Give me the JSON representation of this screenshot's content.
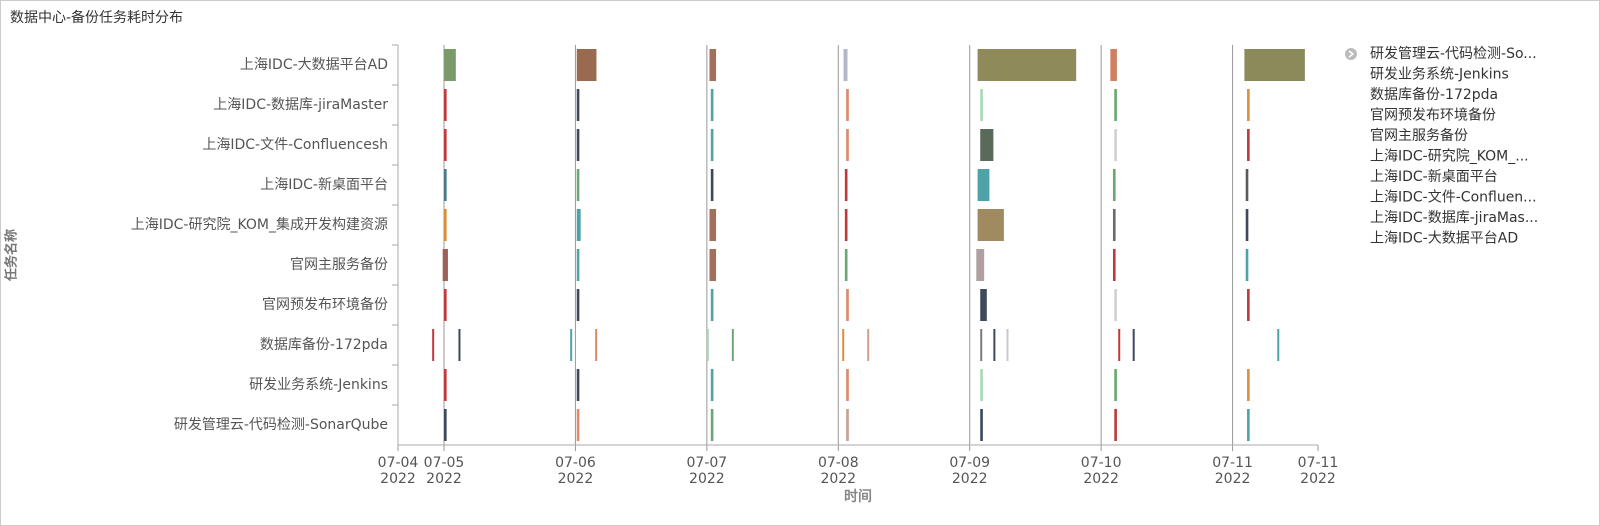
{
  "chart_data": {
    "type": "timeline",
    "title": "数据中心-备份任务耗时分布",
    "y_label": "任务名称",
    "x_label": "时间",
    "categories": [
      "上海IDC-大数据平台AD",
      "上海IDC-数据库-jiraMaster",
      "上海IDC-文件-Confluencesh",
      "上海IDC-新桌面平台",
      "上海IDC-研究院_KOM_集成开发构建资源",
      "官网主服务备份",
      "官网预发布环境备份",
      "数据库备份-172pda",
      "研发业务系统-Jenkins",
      "研发管理云-代码检测-SonarQube"
    ],
    "xlim": [
      4.65,
      11.65
    ],
    "xticks": [
      {
        "value": 4.65,
        "label": "07-04",
        "year": "2022"
      },
      {
        "value": 5,
        "label": "07-05",
        "year": "2022"
      },
      {
        "value": 6,
        "label": "07-06",
        "year": "2022"
      },
      {
        "value": 7,
        "label": "07-07",
        "year": "2022"
      },
      {
        "value": 8,
        "label": "07-08",
        "year": "2022"
      },
      {
        "value": 9,
        "label": "07-09",
        "year": "2022"
      },
      {
        "value": 10,
        "label": "07-10",
        "year": "2022"
      },
      {
        "value": 11,
        "label": "07-11",
        "year": "2022"
      },
      {
        "value": 11.65,
        "label": "07-11",
        "year": "2022"
      }
    ],
    "grid": true,
    "tasks": [
      [
        [
          5.0,
          5.09,
          "#7a9a6a"
        ],
        [
          6.01,
          6.16,
          "#9a6a50"
        ],
        [
          7.02,
          7.07,
          "#a0705a"
        ],
        [
          8.04,
          8.07,
          "#b0b8c8"
        ],
        [
          9.06,
          9.81,
          "#8f8a5a"
        ],
        [
          10.07,
          10.12,
          "#d08060"
        ],
        [
          11.09,
          11.55,
          "#8a8a5a"
        ]
      ],
      [
        [
          5.0,
          5.02,
          "#c0393b"
        ],
        [
          6.01,
          6.03,
          "#3d4a5c"
        ],
        [
          7.03,
          7.05,
          "#4fa3a8"
        ],
        [
          8.06,
          8.08,
          "#d88a6a"
        ],
        [
          9.08,
          9.1,
          "#a8d8b8"
        ],
        [
          10.1,
          10.12,
          "#6aa86f"
        ],
        [
          11.11,
          11.13,
          "#d9903a"
        ]
      ],
      [
        [
          5.0,
          5.02,
          "#c0393b"
        ],
        [
          6.01,
          6.03,
          "#3d4a5c"
        ],
        [
          7.03,
          7.05,
          "#4fa3a8"
        ],
        [
          8.06,
          8.08,
          "#d88a6a"
        ],
        [
          9.08,
          9.18,
          "#5a6a5a"
        ],
        [
          10.1,
          10.12,
          "#d0d0d0"
        ],
        [
          11.11,
          11.13,
          "#c0393b"
        ]
      ],
      [
        [
          5.0,
          5.02,
          "#4a7a8a"
        ],
        [
          6.01,
          6.03,
          "#6aa86f"
        ],
        [
          7.03,
          7.05,
          "#3d4a5c"
        ],
        [
          8.05,
          8.07,
          "#c0393b"
        ],
        [
          9.06,
          9.15,
          "#4fa3a8"
        ],
        [
          10.09,
          10.11,
          "#6aa86f"
        ],
        [
          11.1,
          11.12,
          "#5a5a5a"
        ]
      ],
      [
        [
          5.0,
          5.02,
          "#d9903a"
        ],
        [
          6.01,
          6.04,
          "#4fa3a8"
        ],
        [
          7.02,
          7.07,
          "#a0705a"
        ],
        [
          8.05,
          8.07,
          "#c0393b"
        ],
        [
          9.06,
          9.26,
          "#a08a60"
        ],
        [
          10.09,
          10.11,
          "#6a6a6a"
        ],
        [
          11.1,
          11.12,
          "#3d4a5c"
        ]
      ],
      [
        [
          4.99,
          5.03,
          "#a0605a"
        ],
        [
          6.01,
          6.03,
          "#4fa3a8"
        ],
        [
          7.02,
          7.07,
          "#a0705a"
        ],
        [
          8.05,
          8.07,
          "#6aa86f"
        ],
        [
          9.05,
          9.11,
          "#b0a0a0"
        ],
        [
          10.09,
          10.11,
          "#c0393b"
        ],
        [
          11.1,
          11.12,
          "#4fa3a8"
        ]
      ],
      [
        [
          5.0,
          5.02,
          "#c0393b"
        ],
        [
          6.01,
          6.03,
          "#3d4a5c"
        ],
        [
          7.03,
          7.05,
          "#4fa3a8"
        ],
        [
          8.06,
          8.08,
          "#d88a6a"
        ],
        [
          9.08,
          9.13,
          "#3d4a5c"
        ],
        [
          10.1,
          10.12,
          "#d0d0d0"
        ],
        [
          11.11,
          11.13,
          "#c0393b"
        ]
      ],
      [
        [
          4.91,
          4.925,
          "#c0393b"
        ],
        [
          5.11,
          5.125,
          "#3d4a5c"
        ],
        [
          5.96,
          5.975,
          "#4fa3a8"
        ],
        [
          6.15,
          6.165,
          "#d88a6a"
        ],
        [
          7.0,
          7.015,
          "#a8d8b8"
        ],
        [
          7.19,
          7.205,
          "#6aa86f"
        ],
        [
          8.03,
          8.045,
          "#d9903a"
        ],
        [
          8.22,
          8.235,
          "#d0a090"
        ],
        [
          9.08,
          9.095,
          "#7a7a7a"
        ],
        [
          9.18,
          9.195,
          "#3d4a5c"
        ],
        [
          9.28,
          9.295,
          "#c8c8c8"
        ],
        [
          10.13,
          10.145,
          "#c0393b"
        ],
        [
          10.24,
          10.255,
          "#3d4a5c"
        ],
        [
          11.34,
          11.355,
          "#4fa3a8"
        ]
      ],
      [
        [
          5.0,
          5.02,
          "#c0393b"
        ],
        [
          6.01,
          6.03,
          "#3d4a5c"
        ],
        [
          7.03,
          7.05,
          "#4fa3a8"
        ],
        [
          8.06,
          8.08,
          "#d88a6a"
        ],
        [
          9.08,
          9.1,
          "#a8d8b8"
        ],
        [
          10.1,
          10.12,
          "#6aa86f"
        ],
        [
          11.11,
          11.13,
          "#d9903a"
        ]
      ],
      [
        [
          5.0,
          5.02,
          "#3d4a5c"
        ],
        [
          6.01,
          6.03,
          "#e08a6a"
        ],
        [
          7.03,
          7.05,
          "#6aa86f"
        ],
        [
          8.06,
          8.08,
          "#c8a090"
        ],
        [
          9.08,
          9.1,
          "#3d4a5c"
        ],
        [
          10.1,
          10.12,
          "#c0393b"
        ],
        [
          11.11,
          11.13,
          "#4fa3a8"
        ]
      ]
    ],
    "legend": [
      "研发管理云-代码检测-So...",
      "研发业务系统-Jenkins",
      "数据库备份-172pda",
      "官网预发布环境备份",
      "官网主服务备份",
      "上海IDC-研究院_KOM_...",
      "上海IDC-新桌面平台",
      "上海IDC-文件-Confluen...",
      "上海IDC-数据库-jiraMas...",
      "上海IDC-大数据平台AD"
    ]
  }
}
